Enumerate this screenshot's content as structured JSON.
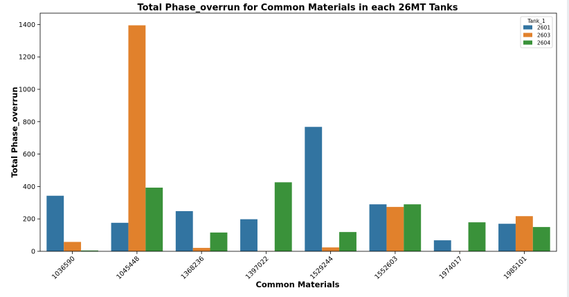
{
  "chart_data": {
    "type": "bar",
    "title": "Total Phase_overrun for Common Materials in each 26MT Tanks",
    "xlabel": "Common Materials",
    "ylabel": "Total Phase_overrun",
    "categories": [
      "1036590",
      "1045448",
      "1368236",
      "1397022",
      "1529244",
      "1552603",
      "1974017",
      "1985101"
    ],
    "ylim": [
      0,
      1470
    ],
    "yticks": [
      0,
      200,
      400,
      600,
      800,
      1000,
      1200,
      1400
    ],
    "legend": {
      "title": "Tank_1",
      "placement": "top-right"
    },
    "series": [
      {
        "name": "2601",
        "color": "#3274a1",
        "values": [
          343,
          176,
          248,
          198,
          768,
          290,
          68,
          170
        ]
      },
      {
        "name": "2603",
        "color": "#e1812c",
        "values": [
          58,
          1395,
          21,
          2,
          24,
          274,
          2,
          217
        ]
      },
      {
        "name": "2604",
        "color": "#3a923a",
        "values": [
          5,
          393,
          116,
          426,
          119,
          290,
          179,
          150
        ]
      }
    ],
    "grid": false
  }
}
